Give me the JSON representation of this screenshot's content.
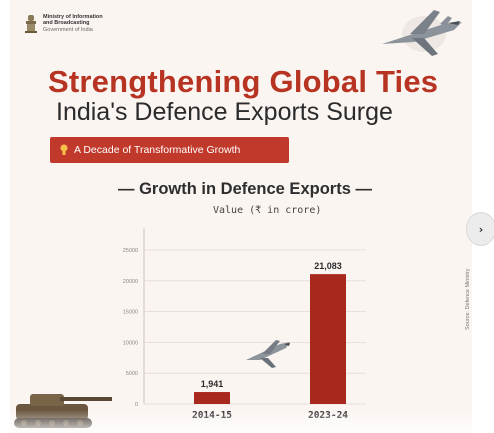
{
  "header": {
    "ministry_line1": "Ministry of Information",
    "ministry_line2": "and Broadcasting",
    "ministry_line3": "Government of India"
  },
  "title": "Strengthening Global Ties",
  "subtitle": "India's Defence Exports Surge",
  "badge": "A Decade of Transformative Growth",
  "side_note": "Source: Defence Ministry",
  "colors": {
    "brand_red": "#c0392b",
    "bar_red": "#a8281d",
    "title_red": "#b73322"
  },
  "icons": {
    "next": "chevron-right-icon",
    "emblem": "national-emblem-icon",
    "badge": "lightbulb-icon"
  },
  "nav": {
    "next_label": "›"
  },
  "chart_data": {
    "type": "bar",
    "title": "— Growth in Defence Exports —",
    "ylabel": "Value (₹ in crore)",
    "categories": [
      "2014-15",
      "2023-24"
    ],
    "values": [
      1941,
      21083
    ],
    "value_labels": [
      "1,941",
      "21,083"
    ],
    "ylim": [
      0,
      25000
    ],
    "yticks": [
      0,
      5000,
      10000,
      15000,
      20000,
      25000
    ],
    "ytick_labels": [
      "0",
      "5000",
      "10000",
      "15000",
      "20000",
      "25000"
    ],
    "grid": true
  }
}
